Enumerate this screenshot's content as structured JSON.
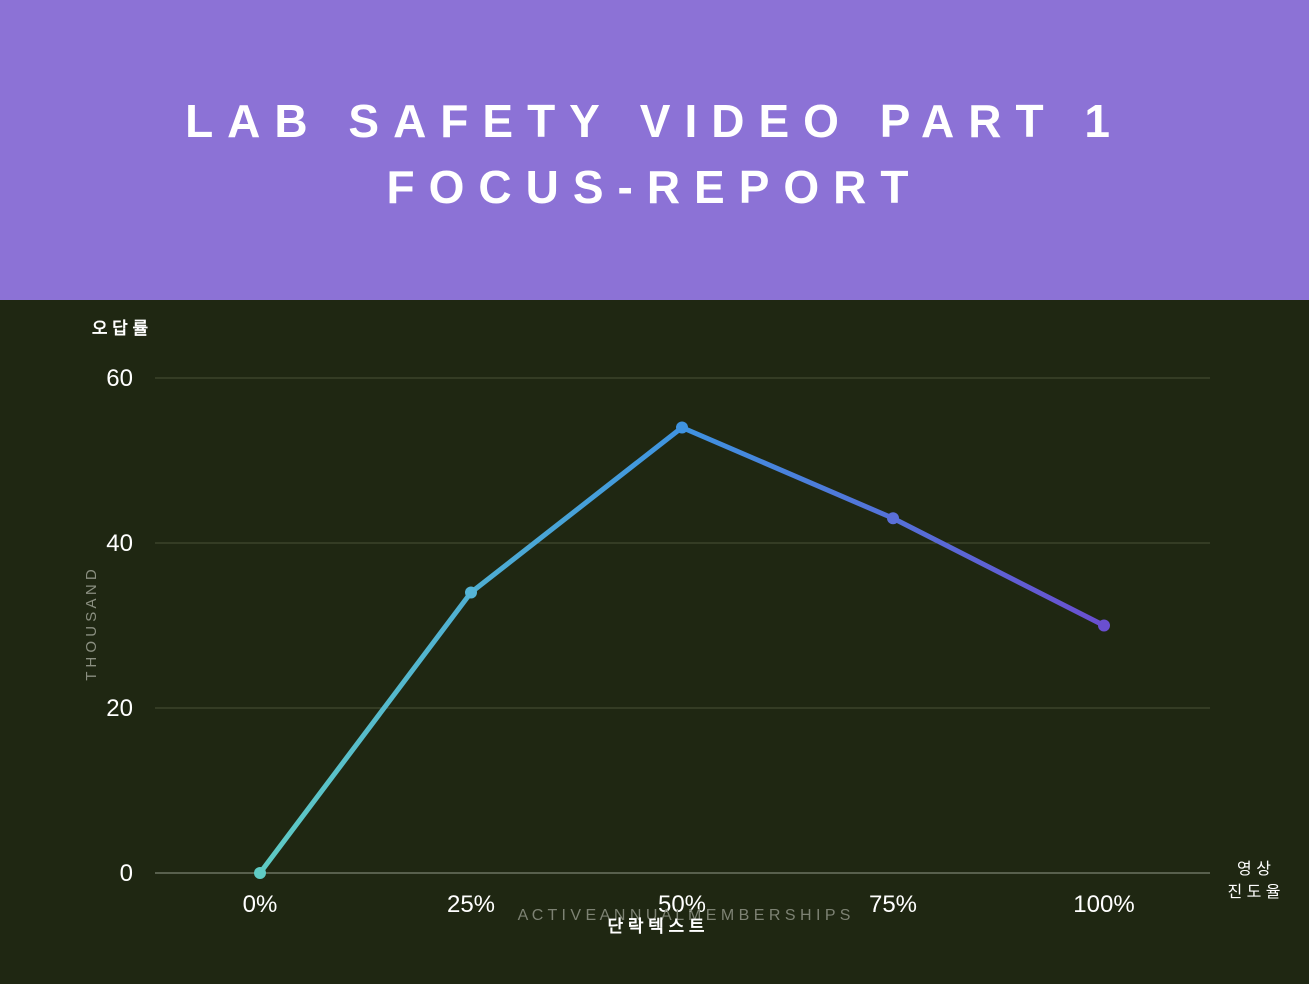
{
  "header": {
    "title_line1": "LAB SAFETY VIDEO PART 1",
    "title_line2": "FOCUS-REPORT"
  },
  "colors": {
    "header_bg": "#8c72d6",
    "plot_bg": "#1f2712",
    "line_start": "#5fcbc4",
    "line_mid": "#3f93e0",
    "line_end": "#6a4fd0",
    "gridline": "#4a5236"
  },
  "chart_data": {
    "type": "line",
    "categories": [
      "0%",
      "25%",
      "50%",
      "75%",
      "100%"
    ],
    "series": [
      {
        "values": [
          0,
          34,
          54,
          43,
          30
        ]
      }
    ],
    "ylim": [
      0,
      60
    ],
    "yticks": [
      0,
      20,
      40,
      60
    ],
    "y_title": "오 답 률",
    "y_side_label": "T H O U S A N D",
    "x_title": "단 락   텍 스 트",
    "x_side_label_line1": "영 상",
    "x_side_label_line2": "진 도 율",
    "watermark": "A C T I V E   A N N U A L   M E M B E R S H I P S",
    "grid": true
  }
}
